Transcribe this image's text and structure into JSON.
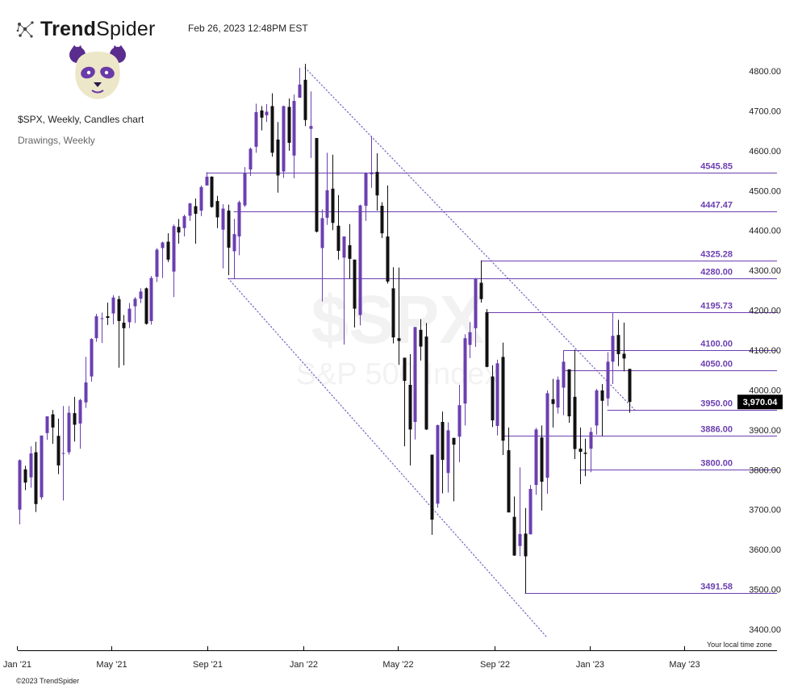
{
  "brand": {
    "name_bold": "Trend",
    "name_light": "Spider",
    "logo_icon": "trendspider-node-icon"
  },
  "header": {
    "timestamp": "Feb 26, 2023 12:48PM EST"
  },
  "avatar": {
    "icon": "panda-avatar"
  },
  "chart_info": {
    "title": "$SPX, Weekly, Candles chart",
    "subtitle": "Drawings, Weekly"
  },
  "watermark": {
    "symbol": "$SPX",
    "name": "S&P 500 Index"
  },
  "footer": {
    "local_tz": "Your local time zone",
    "copyright": "©2023 TrendSpider"
  },
  "colors": {
    "up": "#6b3fb0",
    "down": "#111111",
    "level_line": "#6b3fb0",
    "trend_dots": "#7b6bc0",
    "price_tag_bg": "#000000"
  },
  "chart_data": {
    "type": "candlestick",
    "interval": "Weekly",
    "ylim": [
      3365,
      4830
    ],
    "y_ticks": [
      3400,
      3500,
      3600,
      3700,
      3800,
      3900,
      4000,
      4100,
      4200,
      4300,
      4400,
      4500,
      4600,
      4700,
      4800
    ],
    "y_tick_labels": [
      "3400.00",
      "3500.00",
      "3600.00",
      "3700.00",
      "3800.00",
      "3900.00",
      "4000.00",
      "4100.00",
      "4200.00",
      "4300.00",
      "4400.00",
      "4500.00",
      "4600.00",
      "4700.00",
      "4800.00"
    ],
    "x_ticks": [
      {
        "label": "Jan '21",
        "date": "2021-01-01"
      },
      {
        "label": "May '21",
        "date": "2021-05-01"
      },
      {
        "label": "Sep '21",
        "date": "2021-09-01"
      },
      {
        "label": "Jan '22",
        "date": "2022-01-01"
      },
      {
        "label": "May '22",
        "date": "2022-05-01"
      },
      {
        "label": "Sep '22",
        "date": "2022-09-01"
      },
      {
        "label": "Jan '23",
        "date": "2023-01-01"
      },
      {
        "label": "May '23",
        "date": "2023-05-01"
      }
    ],
    "current_price": "3,970.04",
    "current_price_value": 3970.04,
    "levels": [
      {
        "value": 4545.85,
        "label": "4545.85",
        "from": "2021-08-30"
      },
      {
        "value": 4447.47,
        "label": "4447.47",
        "from": "2021-10-04"
      },
      {
        "value": 4325.28,
        "label": "4325.28",
        "from": "2022-08-15"
      },
      {
        "value": 4280.0,
        "label": "4280.00",
        "from": "2021-09-27"
      },
      {
        "value": 4195.73,
        "label": "4195.73",
        "from": "2022-08-22"
      },
      {
        "value": 4100.0,
        "label": "4100.00",
        "from": "2022-11-28"
      },
      {
        "value": 4050.0,
        "label": "4050.00",
        "from": "2022-11-28"
      },
      {
        "value": 3950.0,
        "label": "3950.00",
        "from": "2023-01-23"
      },
      {
        "value": 3886.0,
        "label": "3886.00",
        "from": "2022-09-12"
      },
      {
        "value": 3800.0,
        "label": "3800.00",
        "from": "2022-12-19"
      },
      {
        "value": 3491.58,
        "label": "3491.58",
        "from": "2022-10-10"
      }
    ],
    "trendlines": [
      {
        "x1": "2022-01-03",
        "y1": 4808,
        "x2": "2023-02-27",
        "y2": 3950
      },
      {
        "x1": "2021-09-27",
        "y1": 4280,
        "x2": "2022-11-07",
        "y2": 3380
      }
    ],
    "candles": [
      {
        "date": "2021-01-04",
        "o": 3700,
        "h": 3826,
        "l": 3663,
        "c": 3824
      },
      {
        "date": "2021-01-11",
        "o": 3801,
        "h": 3810,
        "l": 3749,
        "c": 3768
      },
      {
        "date": "2021-01-18",
        "o": 3781,
        "h": 3859,
        "l": 3755,
        "c": 3841
      },
      {
        "date": "2021-01-25",
        "o": 3844,
        "h": 3870,
        "l": 3694,
        "c": 3714
      },
      {
        "date": "2021-02-01",
        "o": 3731,
        "h": 3876,
        "l": 3725,
        "c": 3886
      },
      {
        "date": "2021-02-08",
        "o": 3892,
        "h": 3931,
        "l": 3875,
        "c": 3934
      },
      {
        "date": "2021-02-15",
        "o": 3939,
        "h": 3950,
        "l": 3865,
        "c": 3906
      },
      {
        "date": "2021-02-22",
        "o": 3885,
        "h": 3928,
        "l": 3789,
        "c": 3811
      },
      {
        "date": "2021-03-01",
        "o": 3842,
        "h": 3960,
        "l": 3723,
        "c": 3842
      },
      {
        "date": "2021-03-08",
        "o": 3844,
        "h": 3960,
        "l": 3838,
        "c": 3943
      },
      {
        "date": "2021-03-15",
        "o": 3942,
        "h": 3983,
        "l": 3871,
        "c": 3913
      },
      {
        "date": "2021-03-22",
        "o": 3916,
        "h": 3978,
        "l": 3853,
        "c": 3975
      },
      {
        "date": "2021-03-29",
        "o": 3969,
        "h": 4083,
        "l": 3955,
        "c": 4019
      },
      {
        "date": "2021-04-05",
        "o": 4034,
        "h": 4130,
        "l": 4021,
        "c": 4128
      },
      {
        "date": "2021-04-12",
        "o": 4130,
        "h": 4191,
        "l": 4121,
        "c": 4185
      },
      {
        "date": "2021-04-19",
        "o": 4179,
        "h": 4194,
        "l": 4118,
        "c": 4180
      },
      {
        "date": "2021-04-26",
        "o": 4185,
        "h": 4219,
        "l": 4163,
        "c": 4181
      },
      {
        "date": "2021-05-03",
        "o": 4192,
        "h": 4238,
        "l": 4165,
        "c": 4232
      },
      {
        "date": "2021-05-10",
        "o": 4228,
        "h": 4236,
        "l": 4056,
        "c": 4173
      },
      {
        "date": "2021-05-17",
        "o": 4169,
        "h": 4188,
        "l": 4062,
        "c": 4155
      },
      {
        "date": "2021-05-24",
        "o": 4170,
        "h": 4218,
        "l": 4155,
        "c": 4204
      },
      {
        "date": "2021-05-31",
        "o": 4210,
        "h": 4233,
        "l": 4168,
        "c": 4229
      },
      {
        "date": "2021-06-07",
        "o": 4229,
        "h": 4255,
        "l": 4218,
        "c": 4247
      },
      {
        "date": "2021-06-14",
        "o": 4255,
        "h": 4257,
        "l": 4164,
        "c": 4166
      },
      {
        "date": "2021-06-21",
        "o": 4173,
        "h": 4286,
        "l": 4164,
        "c": 4281
      },
      {
        "date": "2021-06-28",
        "o": 4284,
        "h": 4356,
        "l": 4271,
        "c": 4352
      },
      {
        "date": "2021-07-05",
        "o": 4356,
        "h": 4372,
        "l": 4281,
        "c": 4370
      },
      {
        "date": "2021-07-12",
        "o": 4372,
        "h": 4393,
        "l": 4321,
        "c": 4327
      },
      {
        "date": "2021-07-19",
        "o": 4297,
        "h": 4415,
        "l": 4233,
        "c": 4411
      },
      {
        "date": "2021-07-26",
        "o": 4409,
        "h": 4429,
        "l": 4367,
        "c": 4395
      },
      {
        "date": "2021-08-02",
        "o": 4406,
        "h": 4440,
        "l": 4385,
        "c": 4436
      },
      {
        "date": "2021-08-09",
        "o": 4437,
        "h": 4469,
        "l": 4424,
        "c": 4468
      },
      {
        "date": "2021-08-16",
        "o": 4461,
        "h": 4480,
        "l": 4367,
        "c": 4442
      },
      {
        "date": "2021-08-23",
        "o": 4450,
        "h": 4513,
        "l": 4436,
        "c": 4509
      },
      {
        "date": "2021-08-30",
        "o": 4513,
        "h": 4546,
        "l": 4513,
        "c": 4535
      },
      {
        "date": "2021-09-06",
        "o": 4535,
        "h": 4536,
        "l": 4457,
        "c": 4459
      },
      {
        "date": "2021-09-13",
        "o": 4474,
        "h": 4487,
        "l": 4406,
        "c": 4433
      },
      {
        "date": "2021-09-20",
        "o": 4402,
        "h": 4466,
        "l": 4305,
        "c": 4455
      },
      {
        "date": "2021-09-27",
        "o": 4450,
        "h": 4465,
        "l": 4288,
        "c": 4357
      },
      {
        "date": "2021-10-04",
        "o": 4348,
        "h": 4429,
        "l": 4278,
        "c": 4391
      },
      {
        "date": "2021-10-11",
        "o": 4385,
        "h": 4475,
        "l": 4338,
        "c": 4471
      },
      {
        "date": "2021-10-18",
        "o": 4463,
        "h": 4559,
        "l": 4459,
        "c": 4545
      },
      {
        "date": "2021-10-25",
        "o": 4553,
        "h": 4608,
        "l": 4537,
        "c": 4605
      },
      {
        "date": "2021-11-01",
        "o": 4610,
        "h": 4718,
        "l": 4595,
        "c": 4697
      },
      {
        "date": "2021-11-08",
        "o": 4701,
        "h": 4712,
        "l": 4651,
        "c": 4683
      },
      {
        "date": "2021-11-15",
        "o": 4689,
        "h": 4717,
        "l": 4672,
        "c": 4698
      },
      {
        "date": "2021-11-22",
        "o": 4712,
        "h": 4744,
        "l": 4585,
        "c": 4595
      },
      {
        "date": "2021-11-29",
        "o": 4628,
        "h": 4672,
        "l": 4495,
        "c": 4538
      },
      {
        "date": "2021-12-06",
        "o": 4548,
        "h": 4713,
        "l": 4532,
        "c": 4712
      },
      {
        "date": "2021-12-13",
        "o": 4710,
        "h": 4731,
        "l": 4600,
        "c": 4620
      },
      {
        "date": "2021-12-20",
        "o": 4588,
        "h": 4741,
        "l": 4531,
        "c": 4725
      },
      {
        "date": "2021-12-27",
        "o": 4733,
        "h": 4808,
        "l": 4733,
        "c": 4766
      },
      {
        "date": "2022-01-03",
        "o": 4778,
        "h": 4818,
        "l": 4662,
        "c": 4677
      },
      {
        "date": "2022-01-10",
        "o": 4655,
        "h": 4749,
        "l": 4582,
        "c": 4662
      },
      {
        "date": "2022-01-17",
        "o": 4632,
        "h": 4632,
        "l": 4395,
        "c": 4397
      },
      {
        "date": "2022-01-24",
        "o": 4356,
        "h": 4453,
        "l": 4222,
        "c": 4431
      },
      {
        "date": "2022-01-31",
        "o": 4432,
        "h": 4595,
        "l": 4414,
        "c": 4501
      },
      {
        "date": "2022-02-07",
        "o": 4505,
        "h": 4590,
        "l": 4401,
        "c": 4419
      },
      {
        "date": "2022-02-14",
        "o": 4412,
        "h": 4489,
        "l": 4327,
        "c": 4349
      },
      {
        "date": "2022-02-21",
        "o": 4332,
        "h": 4385,
        "l": 4114,
        "c": 4385
      },
      {
        "date": "2022-02-28",
        "o": 4363,
        "h": 4416,
        "l": 4279,
        "c": 4329
      },
      {
        "date": "2022-03-07",
        "o": 4327,
        "h": 4327,
        "l": 4157,
        "c": 4204
      },
      {
        "date": "2022-03-14",
        "o": 4188,
        "h": 4465,
        "l": 4162,
        "c": 4463
      },
      {
        "date": "2022-03-21",
        "o": 4462,
        "h": 4546,
        "l": 4424,
        "c": 4543
      },
      {
        "date": "2022-03-28",
        "o": 4541,
        "h": 4637,
        "l": 4507,
        "c": 4546
      },
      {
        "date": "2022-04-04",
        "o": 4547,
        "h": 4594,
        "l": 4450,
        "c": 4488
      },
      {
        "date": "2022-04-11",
        "o": 4462,
        "h": 4471,
        "l": 4381,
        "c": 4393
      },
      {
        "date": "2022-04-18",
        "o": 4385,
        "h": 4513,
        "l": 4267,
        "c": 4272
      },
      {
        "date": "2022-04-25",
        "o": 4255,
        "h": 4308,
        "l": 4117,
        "c": 4132
      },
      {
        "date": "2022-05-02",
        "o": 4130,
        "h": 4307,
        "l": 4063,
        "c": 4123
      },
      {
        "date": "2022-05-09",
        "o": 4081,
        "h": 4081,
        "l": 3859,
        "c": 4023
      },
      {
        "date": "2022-05-16",
        "o": 4013,
        "h": 4090,
        "l": 3811,
        "c": 3901
      },
      {
        "date": "2022-05-23",
        "o": 3920,
        "h": 4158,
        "l": 3876,
        "c": 4158
      },
      {
        "date": "2022-05-30",
        "o": 4151,
        "h": 4178,
        "l": 4074,
        "c": 4109
      },
      {
        "date": "2022-06-06",
        "o": 4134,
        "h": 4168,
        "l": 3900,
        "c": 3901
      },
      {
        "date": "2022-06-13",
        "o": 3838,
        "h": 3838,
        "l": 3637,
        "c": 3675
      },
      {
        "date": "2022-06-20",
        "o": 3715,
        "h": 3913,
        "l": 3705,
        "c": 3912
      },
      {
        "date": "2022-06-27",
        "o": 3920,
        "h": 3946,
        "l": 3741,
        "c": 3825
      },
      {
        "date": "2022-07-04",
        "o": 3792,
        "h": 3919,
        "l": 3743,
        "c": 3899
      },
      {
        "date": "2022-07-11",
        "o": 3880,
        "h": 3880,
        "l": 3721,
        "c": 3863
      },
      {
        "date": "2022-07-18",
        "o": 3883,
        "h": 4013,
        "l": 3819,
        "c": 3962
      },
      {
        "date": "2022-07-25",
        "o": 3966,
        "h": 4140,
        "l": 3911,
        "c": 4130
      },
      {
        "date": "2022-08-01",
        "o": 4113,
        "h": 4170,
        "l": 4080,
        "c": 4145
      },
      {
        "date": "2022-08-08",
        "o": 4155,
        "h": 4281,
        "l": 4108,
        "c": 4280
      },
      {
        "date": "2022-08-15",
        "o": 4269,
        "h": 4325,
        "l": 4219,
        "c": 4228
      },
      {
        "date": "2022-08-22",
        "o": 4195,
        "h": 4203,
        "l": 4057,
        "c": 4058
      },
      {
        "date": "2022-08-29",
        "o": 4034,
        "h": 4062,
        "l": 3907,
        "c": 3924
      },
      {
        "date": "2022-09-05",
        "o": 3910,
        "h": 4076,
        "l": 3886,
        "c": 4067
      },
      {
        "date": "2022-09-12",
        "o": 4083,
        "h": 4119,
        "l": 3837,
        "c": 3873
      },
      {
        "date": "2022-09-19",
        "o": 3849,
        "h": 3906,
        "l": 3694,
        "c": 3693
      },
      {
        "date": "2022-09-26",
        "o": 3682,
        "h": 3733,
        "l": 3584,
        "c": 3585
      },
      {
        "date": "2022-10-03",
        "o": 3609,
        "h": 3806,
        "l": 3583,
        "c": 3639
      },
      {
        "date": "2022-10-10",
        "o": 3640,
        "h": 3704,
        "l": 3491,
        "c": 3583
      },
      {
        "date": "2022-10-17",
        "o": 3638,
        "h": 3762,
        "l": 3647,
        "c": 3752
      },
      {
        "date": "2022-10-24",
        "o": 3762,
        "h": 3905,
        "l": 3737,
        "c": 3901
      },
      {
        "date": "2022-10-31",
        "o": 3881,
        "h": 3911,
        "l": 3698,
        "c": 3770
      },
      {
        "date": "2022-11-07",
        "o": 3780,
        "h": 3999,
        "l": 3740,
        "c": 3992
      },
      {
        "date": "2022-11-14",
        "o": 3977,
        "h": 4028,
        "l": 3906,
        "c": 3965
      },
      {
        "date": "2022-11-21",
        "o": 3956,
        "h": 4034,
        "l": 3941,
        "c": 4026
      },
      {
        "date": "2022-11-28",
        "o": 4006,
        "h": 4100,
        "l": 3937,
        "c": 4071
      },
      {
        "date": "2022-12-05",
        "o": 4052,
        "h": 4052,
        "l": 3918,
        "c": 3934
      },
      {
        "date": "2022-12-12",
        "o": 3983,
        "h": 4101,
        "l": 3827,
        "c": 3852
      },
      {
        "date": "2022-12-19",
        "o": 3853,
        "h": 3906,
        "l": 3764,
        "c": 3845
      },
      {
        "date": "2022-12-26",
        "o": 3843,
        "h": 3878,
        "l": 3784,
        "c": 3840
      },
      {
        "date": "2023-01-02",
        "o": 3853,
        "h": 3906,
        "l": 3794,
        "c": 3895
      },
      {
        "date": "2023-01-09",
        "o": 3911,
        "h": 4003,
        "l": 3888,
        "c": 3999
      },
      {
        "date": "2023-01-16",
        "o": 3999,
        "h": 4015,
        "l": 3885,
        "c": 3973
      },
      {
        "date": "2023-01-23",
        "o": 3979,
        "h": 4095,
        "l": 3960,
        "c": 4071
      },
      {
        "date": "2023-01-30",
        "o": 4071,
        "h": 4195,
        "l": 4015,
        "c": 4136
      },
      {
        "date": "2023-02-06",
        "o": 4138,
        "h": 4176,
        "l": 4060,
        "c": 4090
      },
      {
        "date": "2023-02-13",
        "o": 4091,
        "h": 4169,
        "l": 4047,
        "c": 4079
      },
      {
        "date": "2023-02-20",
        "o": 4053,
        "h": 4053,
        "l": 3943,
        "c": 3970
      }
    ]
  }
}
